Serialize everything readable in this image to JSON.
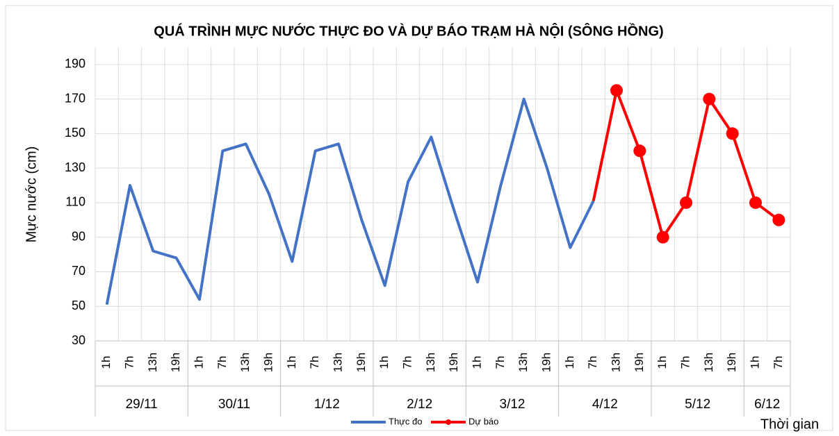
{
  "chart_data": {
    "type": "line",
    "title": "QUÁ TRÌNH MỰC NƯỚC THỰC ĐO VÀ DỰ BÁO TRẠM HÀ NỘI (SÔNG HỒNG)",
    "y_label": "Mực nước (cm)",
    "x_label": "Thời gian",
    "groups": [
      {
        "label": "29/11",
        "hours": [
          "1h",
          "7h",
          "13h",
          "19h"
        ]
      },
      {
        "label": "30/11",
        "hours": [
          "1h",
          "7h",
          "13h",
          "19h"
        ]
      },
      {
        "label": "1/12",
        "hours": [
          "1h",
          "7h",
          "13h",
          "19h"
        ]
      },
      {
        "label": "2/12",
        "hours": [
          "1h",
          "7h",
          "13h",
          "19h"
        ]
      },
      {
        "label": "3/12",
        "hours": [
          "1h",
          "7h",
          "13h",
          "19h"
        ]
      },
      {
        "label": "4/12",
        "hours": [
          "1h",
          "7h",
          "13h",
          "19h"
        ]
      },
      {
        "label": "5/12",
        "hours": [
          "1h",
          "7h",
          "13h",
          "19h"
        ]
      },
      {
        "label": "6/12",
        "hours": [
          "1h",
          "7h"
        ]
      }
    ],
    "series": [
      {
        "name": "Thực đo",
        "color": "#4472c4",
        "markers": false,
        "values": [
          51,
          120,
          82,
          78,
          54,
          140,
          144,
          115,
          76,
          140,
          144,
          100,
          62,
          122,
          148,
          105,
          64,
          120,
          170,
          130,
          84,
          111,
          null,
          null,
          null,
          null,
          null,
          null,
          null,
          null
        ]
      },
      {
        "name": "Dự báo",
        "color": "#ff0000",
        "markers": true,
        "values": [
          null,
          null,
          null,
          null,
          null,
          null,
          null,
          null,
          null,
          null,
          null,
          null,
          null,
          null,
          null,
          null,
          null,
          null,
          null,
          null,
          null,
          null,
          175,
          140,
          90,
          110,
          170,
          150,
          110,
          100
        ]
      }
    ],
    "ylim": [
      30,
      200
    ],
    "yticks": [
      30,
      50,
      70,
      90,
      110,
      130,
      150,
      170,
      190
    ],
    "grid": true
  }
}
